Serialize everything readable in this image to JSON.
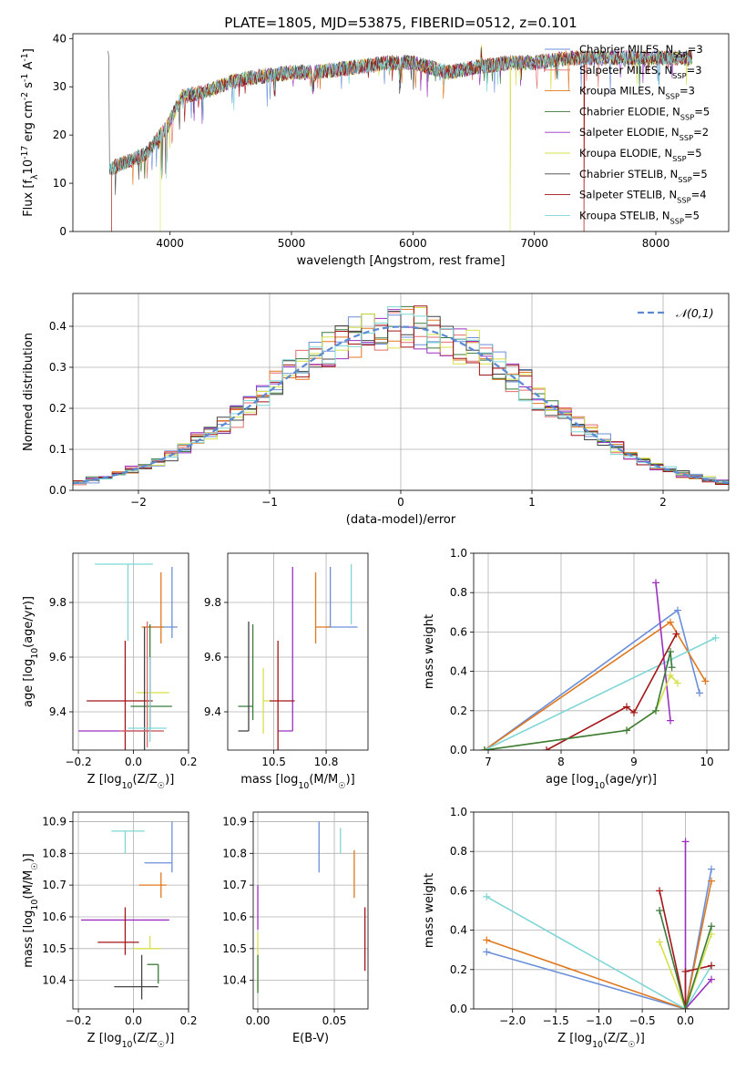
{
  "figure": {
    "title": "PLATE=1805, MJD=53875, FIBERID=0512, z=0.101"
  },
  "series_styles": [
    {
      "name": "Chabrier MILES, N$_{SSP}$=3",
      "color": "#6a8fd8"
    },
    {
      "name": "Salpeter MILES, N$_{SSP}$=3",
      "color": "#e36b6b"
    },
    {
      "name": "Kroupa MILES, N$_{SSP}$=3",
      "color": "#e0781e"
    },
    {
      "name": "Chabrier ELODIE, N$_{SSP}$=5",
      "color": "#3a7a3a"
    },
    {
      "name": "Salpeter ELODIE, N$_{SSP}$=2",
      "color": "#9b30c0"
    },
    {
      "name": "Kroupa ELODIE, N$_{SSP}$=5",
      "color": "#d6e04a"
    },
    {
      "name": "Chabrier STELIB, N$_{SSP}$=5",
      "color": "#444444"
    },
    {
      "name": "Salpeter STELIB, N$_{SSP}$=4",
      "color": "#a31518"
    },
    {
      "name": "Kroupa STELIB, N$_{SSP}$=5",
      "color": "#7fd6d6"
    }
  ],
  "chart_data": [
    {
      "id": "spectrum",
      "type": "line",
      "title": "PLATE=1805, MJD=53875, FIBERID=0512, z=0.101",
      "xlabel": "wavelength [Angstrom, rest frame]",
      "ylabel": "Flux [f$_\\lambda$10$^{-17}$ erg cm$^{-2}$ s$^{-1}$ A$^{-1}$]",
      "xlim": [
        3200,
        8600
      ],
      "ylim": [
        0,
        41
      ],
      "xticks": [
        4000,
        5000,
        6000,
        7000,
        8000
      ],
      "yticks": [
        0,
        10,
        20,
        30,
        40
      ],
      "legend_position": "right",
      "grid": false,
      "legend": [
        "Chabrier MILES, N$_{SSP}$=3",
        "Salpeter MILES, N$_{SSP}$=3",
        "Kroupa MILES, N$_{SSP}$=3",
        "Chabrier ELODIE, N$_{SSP}$=5",
        "Salpeter ELODIE, N$_{SSP}$=2",
        "Kroupa ELODIE, N$_{SSP}$=5",
        "Chabrier STELIB, N$_{SSP}$=5",
        "Salpeter STELIB, N$_{SSP}$=4",
        "Kroupa STELIB, N$_{SSP}$=5"
      ],
      "continuum": {
        "x": [
          3500,
          3700,
          3800,
          3950,
          4000,
          4100,
          4300,
          4500,
          4700,
          5000,
          5200,
          5500,
          5800,
          6000,
          6300,
          6500,
          6800,
          7000,
          7300,
          7500,
          7800,
          8000,
          8300
        ],
        "y": [
          13,
          15,
          16,
          21,
          23,
          28,
          29,
          31,
          32,
          33,
          33,
          34,
          35,
          35,
          33,
          34,
          35,
          35,
          36,
          36,
          36,
          36,
          36
        ]
      }
    },
    {
      "id": "residuals",
      "type": "step",
      "xlabel": "(data-model)/error",
      "ylabel": "Normed distribution",
      "xlim": [
        -2.5,
        2.5
      ],
      "ylim": [
        0,
        0.48
      ],
      "xticks": [
        -2,
        -1,
        0,
        1,
        2
      ],
      "yticks": [
        0.0,
        0.1,
        0.2,
        0.3,
        0.4
      ],
      "grid": true,
      "legend": [
        "$\\mathcal{N}(0,1)$"
      ],
      "legend_position": "top-right",
      "reference_curve": "normal(0,1)"
    },
    {
      "id": "age-vs-Z",
      "type": "errorbar",
      "xlabel": "Z [log$_{10}$(Z/Z$_\\odot$)]",
      "ylabel": "age  [log$_{10}$(age/yr)]",
      "xlim": [
        -0.22,
        0.2
      ],
      "ylim": [
        9.26,
        9.98
      ],
      "xticks": [
        -0.2,
        0.0,
        0.2
      ],
      "yticks": [
        9.4,
        9.6,
        9.8
      ],
      "points": [
        {
          "x": 0.14,
          "y": 9.71,
          "xerr": [
            0.1,
            0.02
          ],
          "yerr": [
            0.04,
            0.22
          ],
          "s": 0
        },
        {
          "x": 0.1,
          "y": 9.71,
          "xerr": [
            0.07,
            0.01
          ],
          "yerr": [
            0.06,
            0.2
          ],
          "s": 2
        },
        {
          "x": -0.02,
          "y": 9.94,
          "xerr": [
            0.12,
            0.09
          ],
          "yerr": [
            0.28,
            0.0
          ],
          "s": 8
        },
        {
          "x": 0.06,
          "y": 9.42,
          "xerr": [
            0.07,
            0.08
          ],
          "yerr": [
            0.08,
            0.3
          ],
          "s": 3
        },
        {
          "x": 0.06,
          "y": 9.33,
          "xerr": [
            0.26,
            0.0
          ],
          "yerr": [
            0.0,
            0.27
          ],
          "s": 4
        },
        {
          "x": 0.05,
          "y": 9.47,
          "xerr": [
            0.04,
            0.08
          ],
          "yerr": [
            0.14,
            0.0
          ],
          "s": 5
        },
        {
          "x": 0.04,
          "y": 9.33,
          "xerr": [
            0.08,
            0.07
          ],
          "yerr": [
            0.07,
            0.38
          ],
          "s": 6
        },
        {
          "x": -0.03,
          "y": 9.44,
          "xerr": [
            0.14,
            0.1
          ],
          "yerr": [
            0.18,
            0.22
          ],
          "s": 7
        },
        {
          "x": 0.05,
          "y": 9.33,
          "xerr": [
            0.1,
            0.06
          ],
          "yerr": [
            0.06,
            0.4
          ],
          "s": 1
        },
        {
          "x": 0.06,
          "y": 9.34,
          "xerr": [
            0.08,
            0.06
          ],
          "yerr": [
            0.05,
            0.26
          ],
          "s": 8
        }
      ]
    },
    {
      "id": "age-vs-mass",
      "type": "errorbar",
      "xlabel": "mass [log$_{10}$(M/M$_\\odot$)]",
      "ylabel": "",
      "xlim": [
        10.28,
        10.95
      ],
      "ylim": [
        9.26,
        9.98
      ],
      "xticks": [
        10.5,
        10.75
      ],
      "yticks": [
        9.4,
        9.6,
        9.8
      ],
      "points": [
        {
          "x": 10.77,
          "y": 9.71,
          "xerr": [
            0.02,
            0.13
          ],
          "yerr": [
            0.0,
            0.22
          ],
          "s": 0
        },
        {
          "x": 10.7,
          "y": 9.71,
          "xerr": [
            0.0,
            0.07
          ],
          "yerr": [
            0.06,
            0.2
          ],
          "s": 2
        },
        {
          "x": 10.87,
          "y": 9.94,
          "xerr": [
            0.0,
            0.0
          ],
          "yerr": [
            0.22,
            0.0
          ],
          "s": 8
        },
        {
          "x": 10.4,
          "y": 9.42,
          "xerr": [
            0.07,
            0.0
          ],
          "yerr": [
            0.05,
            0.3
          ],
          "s": 3
        },
        {
          "x": 10.59,
          "y": 9.33,
          "xerr": [
            0.07,
            0.0
          ],
          "yerr": [
            0.0,
            0.6
          ],
          "s": 4
        },
        {
          "x": 10.45,
          "y": 9.44,
          "xerr": [
            0.0,
            0.05
          ],
          "yerr": [
            0.12,
            0.12
          ],
          "s": 5
        },
        {
          "x": 10.38,
          "y": 9.33,
          "xerr": [
            0.05,
            0.0
          ],
          "yerr": [
            0.0,
            0.4
          ],
          "s": 6
        },
        {
          "x": 10.52,
          "y": 9.44,
          "xerr": [
            0.04,
            0.08
          ],
          "yerr": [
            0.18,
            0.22
          ],
          "s": 7
        },
        {
          "x": 10.38,
          "y": 9.33,
          "xerr": [
            0.0,
            0.08
          ],
          "yerr": [
            0.0,
            0.38
          ],
          "s": 9
        }
      ]
    },
    {
      "id": "weight-vs-age",
      "type": "line",
      "xlabel": "age  [log$_{10}$(age/yr)]",
      "ylabel": "mass weight",
      "xlim": [
        6.8,
        10.3
      ],
      "ylim": [
        0,
        1
      ],
      "xticks": [
        7,
        8,
        9,
        10
      ],
      "yticks": [
        0.0,
        0.2,
        0.4,
        0.6,
        0.8,
        1.0
      ],
      "grid": true,
      "series": [
        {
          "s": 0,
          "x": [
            6.95,
            9.6,
            9.9
          ],
          "y": [
            0.0,
            0.71,
            0.29
          ]
        },
        {
          "s": 2,
          "x": [
            6.95,
            9.5,
            9.98
          ],
          "y": [
            0.0,
            0.65,
            0.35
          ]
        },
        {
          "s": 8,
          "x": [
            6.95,
            10.12
          ],
          "y": [
            0.0,
            0.57
          ]
        },
        {
          "s": 4,
          "x": [
            9.3,
            9.5
          ],
          "y": [
            0.85,
            0.15
          ]
        },
        {
          "s": 7,
          "x": [
            7.8,
            8.9,
            9.0,
            9.58
          ],
          "y": [
            0.0,
            0.22,
            0.19,
            0.59
          ]
        },
        {
          "s": 5,
          "x": [
            6.95,
            8.9,
            9.3,
            9.5,
            9.6
          ],
          "y": [
            0.0,
            0.1,
            0.2,
            0.38,
            0.34
          ]
        },
        {
          "s": 3,
          "x": [
            6.95,
            8.9,
            9.3,
            9.5,
            9.52
          ],
          "y": [
            0.0,
            0.1,
            0.2,
            0.5,
            0.42
          ]
        },
        {
          "s": 9,
          "x": [
            6.95,
            8.85,
            9.0,
            9.3,
            9.5
          ],
          "y": [
            0.0,
            0.09,
            0.1,
            0.25,
            0.42
          ]
        }
      ]
    },
    {
      "id": "mass-vs-Z",
      "type": "errorbar",
      "xlabel": "Z [log$_{10}$(Z/Z$_\\odot$)]",
      "ylabel": "mass [log$_{10}$(M/M$_\\odot$)]",
      "xlim": [
        -0.22,
        0.2
      ],
      "ylim": [
        10.31,
        10.93
      ],
      "xticks": [
        -0.2,
        0.0,
        0.2
      ],
      "yticks": [
        10.4,
        10.5,
        10.6,
        10.7,
        10.8,
        10.9
      ],
      "points": [
        {
          "x": 0.14,
          "y": 10.77,
          "xerr": [
            0.1,
            0.0
          ],
          "yerr": [
            0.03,
            0.13
          ],
          "s": 0
        },
        {
          "x": 0.1,
          "y": 10.7,
          "xerr": [
            0.08,
            0.02
          ],
          "yerr": [
            0.04,
            0.04
          ],
          "s": 2
        },
        {
          "x": -0.03,
          "y": 10.87,
          "xerr": [
            0.05,
            0.07
          ],
          "yerr": [
            0.07,
            0.0
          ],
          "s": 8
        },
        {
          "x": 0.03,
          "y": 10.59,
          "xerr": [
            0.22,
            0.1
          ],
          "yerr": [
            0.0,
            0.0
          ],
          "s": 4
        },
        {
          "x": -0.03,
          "y": 10.52,
          "xerr": [
            0.1,
            0.05
          ],
          "yerr": [
            0.04,
            0.11
          ],
          "s": 7
        },
        {
          "x": 0.06,
          "y": 10.5,
          "xerr": [
            0.06,
            0.04
          ],
          "yerr": [
            0.0,
            0.04
          ],
          "s": 5
        },
        {
          "x": 0.09,
          "y": 10.45,
          "xerr": [
            0.04,
            0.0
          ],
          "yerr": [
            0.06,
            0.0
          ],
          "s": 3
        },
        {
          "x": 0.03,
          "y": 10.4,
          "xerr": [
            0.08,
            0.05
          ],
          "yerr": [
            0.06,
            0.15
          ],
          "s": 9
        },
        {
          "x": 0.03,
          "y": 10.38,
          "xerr": [
            0.1,
            0.06
          ],
          "yerr": [
            0.04,
            0.1
          ],
          "s": 6
        }
      ]
    },
    {
      "id": "mass-vs-EBV",
      "type": "errorbar",
      "xlabel": "E(B-V)",
      "ylabel": "",
      "xlim": [
        -0.003,
        0.072
      ],
      "ylim": [
        10.31,
        10.93
      ],
      "xticks": [
        0.0,
        0.05
      ],
      "yticks": [
        10.4,
        10.5,
        10.6,
        10.7,
        10.8,
        10.9
      ],
      "points": [
        {
          "x": 0.04,
          "y": 10.82,
          "yerr": [
            0.08,
            0.08
          ],
          "s": 0
        },
        {
          "x": 0.054,
          "y": 10.84,
          "yerr": [
            0.04,
            0.04
          ],
          "s": 8
        },
        {
          "x": 0.063,
          "y": 10.73,
          "yerr": [
            0.07,
            0.08
          ],
          "s": 2
        },
        {
          "x": 0.0,
          "y": 10.63,
          "yerr": [
            0.07,
            0.07
          ],
          "s": 4
        },
        {
          "x": 0.07,
          "y": 10.53,
          "yerr": [
            0.1,
            0.1
          ],
          "s": 7
        },
        {
          "x": 0.0,
          "y": 10.46,
          "yerr": [
            0.09,
            0.09
          ],
          "s": 5
        },
        {
          "x": 0.0,
          "y": 10.42,
          "yerr": [
            0.06,
            0.06
          ],
          "s": 3
        },
        {
          "x": 0.07,
          "y": 10.42,
          "yerr": [
            0.08,
            0.08
          ],
          "s": 9
        }
      ]
    },
    {
      "id": "weight-vs-Z",
      "type": "line",
      "xlabel": "Z [log$_{10}$(Z/Z$_\\odot$)]",
      "ylabel": "mass weight",
      "xlim": [
        -2.45,
        0.5
      ],
      "ylim": [
        0,
        1
      ],
      "xticks": [
        -2.0,
        -1.5,
        -1.0,
        -0.5,
        0.0
      ],
      "yticks": [
        0.0,
        0.2,
        0.4,
        0.6,
        0.8,
        1.0
      ],
      "grid": true,
      "series": [
        {
          "s": 0,
          "x": [
            -2.3,
            0.0,
            0.3
          ],
          "y": [
            0.29,
            0.0,
            0.71
          ]
        },
        {
          "s": 2,
          "x": [
            -2.3,
            0.0,
            0.3
          ],
          "y": [
            0.35,
            0.0,
            0.65
          ]
        },
        {
          "s": 8,
          "x": [
            -2.3,
            0.0,
            0.3
          ],
          "y": [
            0.57,
            0.0,
            0.22
          ]
        },
        {
          "s": 4,
          "x": [
            0.0,
            0.0,
            0.3
          ],
          "y": [
            0.85,
            0.0,
            0.15
          ]
        },
        {
          "s": 7,
          "x": [
            -0.3,
            0.0,
            0.0,
            0.3
          ],
          "y": [
            0.6,
            0.0,
            0.19,
            0.22
          ]
        },
        {
          "s": 5,
          "x": [
            -0.3,
            0.0,
            0.3
          ],
          "y": [
            0.34,
            0.0,
            0.38
          ]
        },
        {
          "s": 3,
          "x": [
            -0.3,
            0.0,
            0.3
          ],
          "y": [
            0.5,
            0.0,
            0.42
          ]
        },
        {
          "s": 9,
          "x": [
            -0.3,
            0.0,
            0.3
          ],
          "y": [
            0.42,
            0.0,
            0.25
          ]
        }
      ]
    }
  ]
}
